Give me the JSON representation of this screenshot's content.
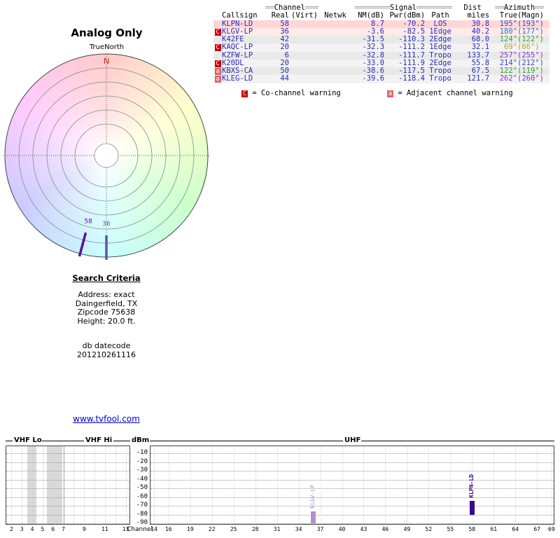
{
  "page": {
    "analog_title": "Analog Only",
    "link_text": "www.tvfool.com"
  },
  "polar_labels": {
    "true_north": "TrueNorth",
    "north": "N"
  },
  "table": {
    "header_groups": {
      "channel": {
        "left": "══",
        "label": "Channel",
        "right": "═══"
      },
      "signal": {
        "left": "════════",
        "label": "Signal",
        "right": "════════"
      },
      "dist": {
        "label": "Dist"
      },
      "azimuth": {
        "left": "══",
        "label": "Azimuth",
        "right": "══"
      }
    },
    "columns": [
      "",
      "Callsign",
      "Real",
      "(Virt)",
      "Netwk",
      "NM(dB)",
      "Pwr(dBm)",
      "Path",
      "miles",
      "True",
      "(Magn)"
    ],
    "rows": [
      {
        "warn": "",
        "callsign": "KLPN-LD",
        "real": "58",
        "virt": "",
        "netwk": "",
        "nm": "8.7",
        "pwr": "-70.2",
        "path": "LOS",
        "miles": "30.8",
        "true_az": "195°",
        "magn": "(193°)",
        "row_bg": "#ffd6d6",
        "az_color": "#3a49c0"
      },
      {
        "warn": "C",
        "callsign": "KLGV-LP",
        "real": "36",
        "virt": "",
        "netwk": "",
        "nm": "-3.6",
        "pwr": "-82.5",
        "path": "1Edge",
        "miles": "40.2",
        "true_az": "180°",
        "magn": "(177°)",
        "row_bg": "#ffeaea",
        "az_color": "#2e6fc0"
      },
      {
        "warn": "",
        "callsign": "K42FE",
        "real": "42",
        "virt": "",
        "netwk": "",
        "nm": "-31.5",
        "pwr": "-110.3",
        "path": "2Edge",
        "miles": "68.0",
        "true_az": "124°",
        "magn": "(122°)",
        "row_bg": "#e9e9e9",
        "az_color": "#2fa32f"
      },
      {
        "warn": "C",
        "callsign": "KAQC-LP",
        "real": "20",
        "virt": "",
        "netwk": "",
        "nm": "-32.3",
        "pwr": "-111.2",
        "path": "1Edge",
        "miles": "32.1",
        "true_az": "69°",
        "magn": "(66°)",
        "row_bg": "#f3f3f3",
        "az_color": "#a8a820"
      },
      {
        "warn": "",
        "callsign": "KZFW-LP",
        "real": "6",
        "virt": "",
        "netwk": "",
        "nm": "-32.8",
        "pwr": "-111.7",
        "path": "Tropo",
        "miles": "133.7",
        "true_az": "257°",
        "magn": "(255°)",
        "row_bg": "#e9e9e9",
        "az_color": "#8432c8"
      },
      {
        "warn": "C",
        "callsign": "K20DL",
        "real": "20",
        "virt": "",
        "netwk": "",
        "nm": "-33.0",
        "pwr": "-111.9",
        "path": "2Edge",
        "miles": "55.8",
        "true_az": "214°",
        "magn": "(212°)",
        "row_bg": "#f3f3f3",
        "az_color": "#3a49c0"
      },
      {
        "warn": "a",
        "callsign": "KBXS-CA",
        "real": "50",
        "virt": "",
        "netwk": "",
        "nm": "-38.6",
        "pwr": "-117.5",
        "path": "Tropo",
        "miles": "67.5",
        "true_az": "122°",
        "magn": "(119°)",
        "row_bg": "#e9e9e9",
        "az_color": "#2fa32f"
      },
      {
        "warn": "a",
        "callsign": "KLEG-LD",
        "real": "44",
        "virt": "",
        "netwk": "",
        "nm": "-39.6",
        "pwr": "-118.4",
        "path": "Tropo",
        "miles": "121.7",
        "true_az": "262°",
        "magn": "(260°)",
        "row_bg": "#f3f3f3",
        "az_color": "#8432c8"
      }
    ]
  },
  "legend": {
    "co_symbol": "C",
    "co_text": "= Co-channel warning",
    "adj_symbol": "a",
    "adj_text": "= Adjacent channel warning"
  },
  "search": {
    "heading": "Search Criteria",
    "lines": [
      "Address: exact",
      "Daingerfield, TX",
      "Zipcode 75638",
      "Height: 20.0 ft."
    ],
    "db_line1": "db datecode",
    "db_line2": "201210261116"
  },
  "spectrum_labels": {
    "vhf_lo": "VHF Lo",
    "vhf_hi": "VHF Hi",
    "dbm": "dBm",
    "uhf": "UHF",
    "channel": "Channel"
  },
  "chart_data": [
    {
      "type": "polar",
      "title": "Analog Only",
      "north_label": "N",
      "marks": [
        {
          "label": "58",
          "azimuth_deg": 195,
          "color": "#5a0f9e"
        },
        {
          "label": "36",
          "azimuth_deg": 180,
          "color": "#5a55b4"
        }
      ]
    },
    {
      "type": "bar",
      "title": "Channel signal levels",
      "xlabel": "Channel",
      "ylabel": "dBm",
      "ylim": [
        -90,
        -10
      ],
      "yticks": [
        -10,
        -20,
        -30,
        -40,
        -50,
        -60,
        -70,
        -80,
        -90
      ],
      "vhf_lo_channels": [
        2,
        3,
        4,
        5,
        6
      ],
      "vhf_hi_channels": [
        7,
        9,
        11,
        13
      ],
      "uhf_channels": [
        14,
        16,
        19,
        22,
        25,
        28,
        31,
        34,
        37,
        40,
        43,
        46,
        49,
        52,
        55,
        58,
        61,
        64,
        67,
        69
      ],
      "shaded_bands": [
        {
          "ch_from": 3.5,
          "ch_to": 4.4
        },
        {
          "ch_from": 5.4,
          "ch_to": 6.9
        }
      ],
      "signals": [
        {
          "callsign": "KLGV-LP",
          "channel": 36,
          "pwr_dbm": -82.5,
          "color": "#b48fd0",
          "bold": false
        },
        {
          "callsign": "KLPN-LD",
          "channel": 58,
          "pwr_dbm": -70.2,
          "color": "#3a0b86",
          "bold": true
        }
      ]
    },
    {
      "type": "table",
      "title": "Station list",
      "columns": [
        "Callsign",
        "Real",
        "NM(dB)",
        "Pwr(dBm)",
        "Path",
        "miles",
        "True",
        "(Magn)"
      ],
      "rows": [
        [
          "KLPN-LD",
          58,
          8.7,
          -70.2,
          "LOS",
          30.8,
          "195°",
          "(193°)"
        ],
        [
          "KLGV-LP",
          36,
          -3.6,
          -82.5,
          "1Edge",
          40.2,
          "180°",
          "(177°)"
        ],
        [
          "K42FE",
          42,
          -31.5,
          -110.3,
          "2Edge",
          68.0,
          "124°",
          "(122°)"
        ],
        [
          "KAQC-LP",
          20,
          -32.3,
          -111.2,
          "1Edge",
          32.1,
          "69°",
          "(66°)"
        ],
        [
          "KZFW-LP",
          6,
          -32.8,
          -111.7,
          "Tropo",
          133.7,
          "257°",
          "(255°)"
        ],
        [
          "K20DL",
          20,
          -33.0,
          -111.9,
          "2Edge",
          55.8,
          "214°",
          "(212°)"
        ],
        [
          "KBXS-CA",
          50,
          -38.6,
          -117.5,
          "Tropo",
          67.5,
          "122°",
          "(119°)"
        ],
        [
          "KLEG-LD",
          44,
          -39.6,
          -118.4,
          "Tropo",
          121.7,
          "262°",
          "(260°)"
        ]
      ]
    }
  ]
}
